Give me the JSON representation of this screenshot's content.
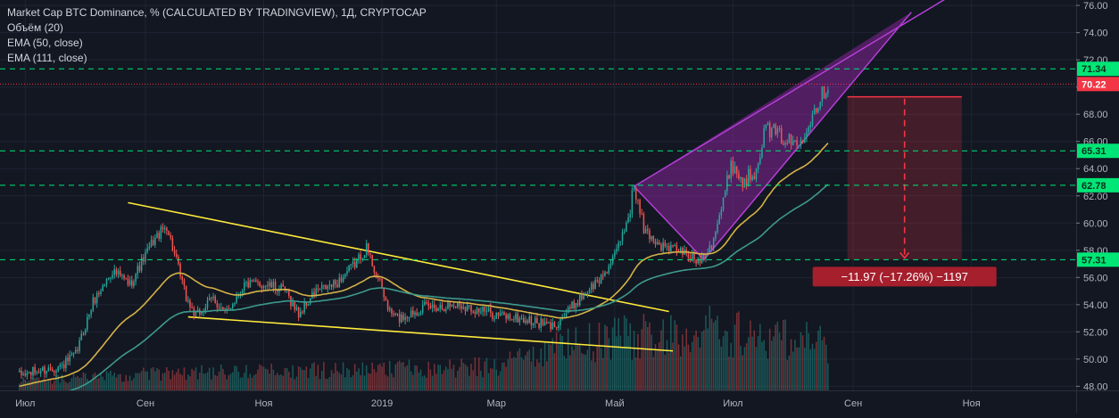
{
  "legend": {
    "title": "Market Cap BTC Dominance, % (CALCULATED BY TRADINGVIEW), 1Д, CRYPTOCAP",
    "volume": "Объём (20)",
    "ema50": "EMA (50, close)",
    "ema111": "EMA (111, close)"
  },
  "colors": {
    "background": "#131722",
    "grid": "#1f2433",
    "up": "#26a69a",
    "down": "#ef5350",
    "ema50": "#d4b247",
    "ema111": "#3d9a8c",
    "wedge": "#9c27b0",
    "trendline": "#ffeb3b",
    "level": "#00e676",
    "current": "#f23645"
  },
  "chart_data": {
    "type": "candlestick",
    "ylim": [
      47.7,
      76.4
    ],
    "y_ticks": [
      48.0,
      50.0,
      52.0,
      54.0,
      56.0,
      58.0,
      60.0,
      62.0,
      64.0,
      66.0,
      68.0,
      70.0,
      72.0,
      74.0,
      76.0
    ],
    "x_tick_labels": [
      "Июл",
      "Сен",
      "Ноя",
      "2019",
      "Мар",
      "Май",
      "Июл",
      "Сен",
      "Ноя"
    ],
    "x_tick_dates": [
      "2018-07-01",
      "2018-09-01",
      "2018-11-01",
      "2019-01-01",
      "2019-03-01",
      "2019-05-01",
      "2019-07-01",
      "2019-09-01",
      "2019-11-01"
    ],
    "xlim": [
      "2018-06-18",
      "2019-12-25"
    ],
    "last_price": 70.22,
    "horizontal_levels": [
      71.34,
      65.31,
      62.78,
      57.31
    ],
    "price_anchors": [
      [
        "2018-06-28",
        48.8
      ],
      [
        "2018-07-20",
        49.5
      ],
      [
        "2018-07-27",
        50.3
      ],
      [
        "2018-08-05",
        54.2
      ],
      [
        "2018-08-15",
        56.5
      ],
      [
        "2018-08-24",
        55.5
      ],
      [
        "2018-09-05",
        58.7
      ],
      [
        "2018-09-12",
        59.8
      ],
      [
        "2018-09-22",
        54.5
      ],
      [
        "2018-09-27",
        53.1
      ],
      [
        "2018-10-06",
        54.5
      ],
      [
        "2018-10-12",
        53.3
      ],
      [
        "2018-10-22",
        55.5
      ],
      [
        "2018-11-02",
        55.5
      ],
      [
        "2018-11-12",
        55.0
      ],
      [
        "2018-11-19",
        53.3
      ],
      [
        "2018-11-28",
        55.0
      ],
      [
        "2018-12-08",
        55.5
      ],
      [
        "2018-12-18",
        57.0
      ],
      [
        "2018-12-24",
        58.2
      ],
      [
        "2018-12-31",
        55.5
      ],
      [
        "2019-01-05",
        53.4
      ],
      [
        "2019-01-10",
        53.0
      ],
      [
        "2019-01-22",
        53.8
      ],
      [
        "2019-02-10",
        54.0
      ],
      [
        "2019-02-28",
        53.3
      ],
      [
        "2019-03-15",
        52.9
      ],
      [
        "2019-03-30",
        52.4
      ],
      [
        "2019-04-05",
        53.2
      ],
      [
        "2019-04-15",
        54.8
      ],
      [
        "2019-04-23",
        55.8
      ],
      [
        "2019-05-01",
        57.5
      ],
      [
        "2019-05-08",
        60.5
      ],
      [
        "2019-05-11",
        62.7
      ],
      [
        "2019-05-16",
        59.5
      ],
      [
        "2019-05-25",
        58.3
      ],
      [
        "2019-06-03",
        58.0
      ],
      [
        "2019-06-13",
        57.2
      ],
      [
        "2019-06-20",
        58.5
      ],
      [
        "2019-06-26",
        61.5
      ],
      [
        "2019-06-30",
        64.5
      ],
      [
        "2019-07-06",
        63.0
      ],
      [
        "2019-07-12",
        63.8
      ],
      [
        "2019-07-18",
        67.0
      ],
      [
        "2019-07-24",
        66.5
      ],
      [
        "2019-07-30",
        66.0
      ],
      [
        "2019-08-04",
        65.8
      ],
      [
        "2019-08-10",
        67.8
      ],
      [
        "2019-08-16",
        69.5
      ],
      [
        "2019-08-19",
        70.2
      ]
    ],
    "volume_levels": [
      [
        "2018-06-18",
        0.06
      ],
      [
        "2018-09-15",
        0.12
      ],
      [
        "2018-12-15",
        0.14
      ],
      [
        "2019-03-01",
        0.17
      ],
      [
        "2019-04-01",
        0.29
      ],
      [
        "2019-05-10",
        0.38
      ],
      [
        "2019-06-20",
        0.42
      ],
      [
        "2019-08-19",
        0.33
      ]
    ],
    "drawings": {
      "wedge": {
        "apex": [
          "2019-06-16",
          57.3
        ],
        "upper_end": [
          "2019-10-01",
          75.5
        ],
        "lower_end": [
          "2019-10-01",
          75.5
        ],
        "upper_start": [
          "2019-05-11",
          62.7
        ],
        "fill_to": [
          "2019-08-20",
          71.5
        ]
      },
      "upper_trendline": [
        [
          "2018-08-23",
          61.5
        ],
        [
          "2019-05-29",
          53.5
        ]
      ],
      "lower_trendline": [
        [
          "2018-09-23",
          53.1
        ],
        [
          "2019-05-31",
          50.6
        ]
      ],
      "target_box": {
        "date_start": "2019-08-29",
        "date_end": "2019-10-27",
        "from_price": 69.28,
        "to_price": 57.31,
        "label": "−11.97 (−17.26%) −1197"
      }
    }
  }
}
